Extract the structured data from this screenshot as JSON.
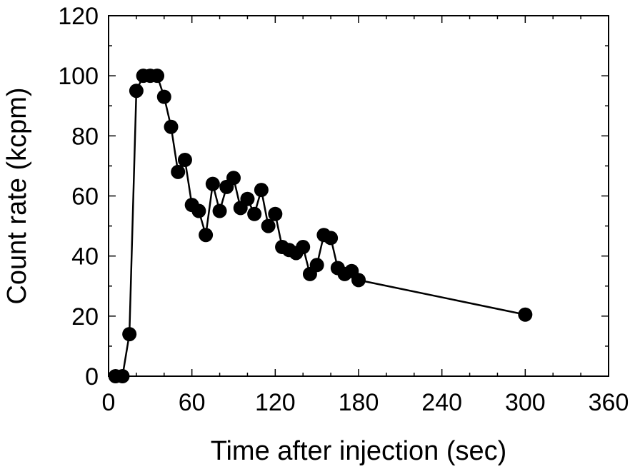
{
  "chart_data": {
    "type": "scatter",
    "title": "",
    "xlabel": "Time after injection (sec)",
    "ylabel": "Count rate (kcpm)",
    "xlim": [
      0,
      360
    ],
    "ylim": [
      0,
      120
    ],
    "xticks": [
      0,
      60,
      120,
      180,
      240,
      300,
      360
    ],
    "yticks": [
      0,
      20,
      40,
      60,
      80,
      100,
      120
    ],
    "xtick_labels": [
      "0",
      "60",
      "120",
      "180",
      "240",
      "300",
      "360"
    ],
    "ytick_labels": [
      "0",
      "20",
      "40",
      "60",
      "80",
      "100",
      "120"
    ],
    "minor_x_step": 20,
    "minor_y_step": 10,
    "grid": false,
    "line_connected": true,
    "marker": "filled-circle",
    "colors": {
      "series": "#000000",
      "axes": "#000000",
      "background": "#ffffff"
    },
    "series": [
      {
        "x": [
          5,
          10,
          15,
          20,
          25,
          30,
          35,
          40,
          45,
          50,
          55,
          60,
          65,
          70,
          75,
          80,
          85,
          90,
          95,
          100,
          105,
          110,
          115,
          120,
          125,
          130,
          135,
          140,
          145,
          150,
          155,
          160,
          165,
          170,
          175,
          180,
          300
        ],
        "y": [
          0,
          0,
          14,
          95,
          100,
          100,
          100,
          93,
          83,
          68,
          72,
          57,
          55,
          47,
          64,
          55,
          63,
          66,
          56,
          59,
          54,
          62,
          50,
          54,
          43,
          42,
          41,
          43,
          34,
          37,
          47,
          46,
          36,
          34,
          35,
          32,
          20.5
        ]
      }
    ]
  }
}
